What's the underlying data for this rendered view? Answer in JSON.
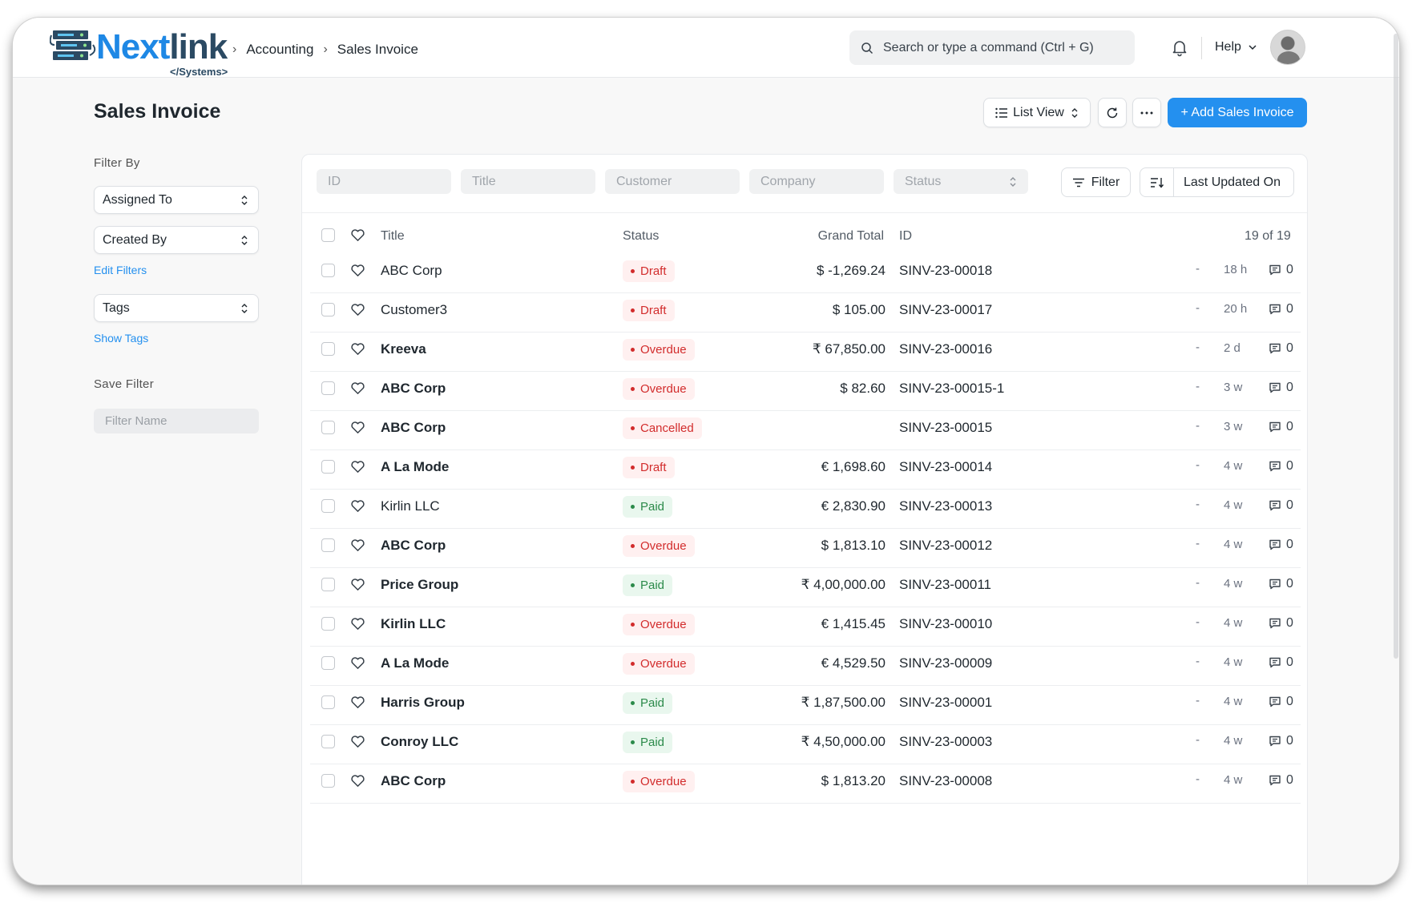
{
  "brand": {
    "name_a": "Next",
    "name_b": "link",
    "sub": "</Systems>"
  },
  "breadcrumb": [
    "Accounting",
    "Sales Invoice"
  ],
  "search": {
    "placeholder": "Search or type a command (Ctrl + G)"
  },
  "help_label": "Help",
  "page": {
    "title": "Sales Invoice"
  },
  "toolbar": {
    "view_label": "List View",
    "add_label": "+ Add Sales Invoice"
  },
  "sidebar": {
    "filter_by": "Filter By",
    "assigned_to": "Assigned To",
    "created_by": "Created By",
    "edit_filters": "Edit Filters",
    "tags": "Tags",
    "show_tags": "Show Tags",
    "save_filter": "Save Filter",
    "filter_name_placeholder": "Filter Name"
  },
  "filters": {
    "id": "ID",
    "title": "Title",
    "customer": "Customer",
    "company": "Company",
    "status": "Status",
    "filter_btn": "Filter",
    "sort_label": "Last Updated On"
  },
  "columns": {
    "title": "Title",
    "status": "Status",
    "grand_total": "Grand Total",
    "id": "ID",
    "count": "19 of 19"
  },
  "colors": {
    "accent": "#2490ef",
    "danger": "#d22c2c",
    "success": "#2b8a4a"
  },
  "rows": [
    {
      "title": "ABC Corp",
      "bold": false,
      "status": "Draft",
      "tone": "red",
      "total": "$ -1,269.24",
      "id": "SINV-23-00018",
      "modified": "-",
      "time": "18 h",
      "comments": "0"
    },
    {
      "title": "Customer3",
      "bold": false,
      "status": "Draft",
      "tone": "red",
      "total": "$ 105.00",
      "id": "SINV-23-00017",
      "modified": "-",
      "time": "20 h",
      "comments": "0"
    },
    {
      "title": "Kreeva",
      "bold": true,
      "status": "Overdue",
      "tone": "red",
      "total": "₹ 67,850.00",
      "id": "SINV-23-00016",
      "modified": "-",
      "time": "2 d",
      "comments": "0"
    },
    {
      "title": "ABC Corp",
      "bold": true,
      "status": "Overdue",
      "tone": "red",
      "total": "$ 82.60",
      "id": "SINV-23-00015-1",
      "modified": "-",
      "time": "3 w",
      "comments": "0"
    },
    {
      "title": "ABC Corp",
      "bold": true,
      "status": "Cancelled",
      "tone": "red",
      "total": "",
      "id": "SINV-23-00015",
      "modified": "-",
      "time": "3 w",
      "comments": "0"
    },
    {
      "title": "A La Mode",
      "bold": true,
      "status": "Draft",
      "tone": "red",
      "total": "€ 1,698.60",
      "id": "SINV-23-00014",
      "modified": "-",
      "time": "4 w",
      "comments": "0"
    },
    {
      "title": "Kirlin LLC",
      "bold": false,
      "status": "Paid",
      "tone": "green",
      "total": "€ 2,830.90",
      "id": "SINV-23-00013",
      "modified": "-",
      "time": "4 w",
      "comments": "0"
    },
    {
      "title": "ABC Corp",
      "bold": true,
      "status": "Overdue",
      "tone": "red",
      "total": "$ 1,813.10",
      "id": "SINV-23-00012",
      "modified": "-",
      "time": "4 w",
      "comments": "0"
    },
    {
      "title": "Price Group",
      "bold": true,
      "status": "Paid",
      "tone": "green",
      "total": "₹ 4,00,000.00",
      "id": "SINV-23-00011",
      "modified": "-",
      "time": "4 w",
      "comments": "0"
    },
    {
      "title": "Kirlin LLC",
      "bold": true,
      "status": "Overdue",
      "tone": "red",
      "total": "€ 1,415.45",
      "id": "SINV-23-00010",
      "modified": "-",
      "time": "4 w",
      "comments": "0"
    },
    {
      "title": "A La Mode",
      "bold": true,
      "status": "Overdue",
      "tone": "red",
      "total": "€ 4,529.50",
      "id": "SINV-23-00009",
      "modified": "-",
      "time": "4 w",
      "comments": "0"
    },
    {
      "title": "Harris Group",
      "bold": true,
      "status": "Paid",
      "tone": "green",
      "total": "₹ 1,87,500.00",
      "id": "SINV-23-00001",
      "modified": "-",
      "time": "4 w",
      "comments": "0"
    },
    {
      "title": "Conroy LLC",
      "bold": true,
      "status": "Paid",
      "tone": "green",
      "total": "₹ 4,50,000.00",
      "id": "SINV-23-00003",
      "modified": "-",
      "time": "4 w",
      "comments": "0"
    },
    {
      "title": "ABC Corp",
      "bold": true,
      "status": "Overdue",
      "tone": "red",
      "total": "$ 1,813.20",
      "id": "SINV-23-00008",
      "modified": "-",
      "time": "4 w",
      "comments": "0"
    }
  ]
}
